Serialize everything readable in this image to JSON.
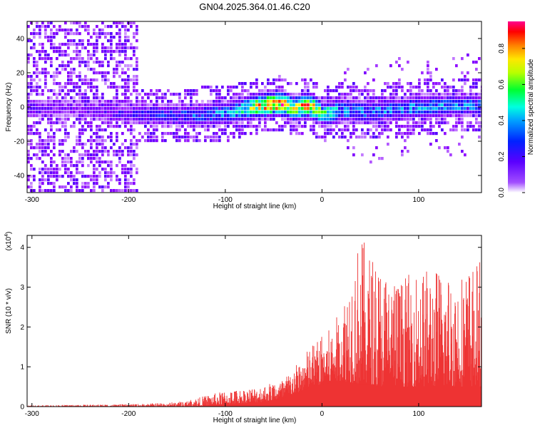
{
  "title": "GN04.2025.364.01.46.C20",
  "chart_data": [
    {
      "type": "heatmap",
      "xlabel": "Height of straight line (km)",
      "ylabel": "Frequency (Hz)",
      "xlim": [
        -305,
        165
      ],
      "ylim": [
        -50,
        50
      ],
      "xticks": [
        -300,
        -200,
        -100,
        0,
        100
      ],
      "yticks": [
        -40,
        -20,
        0,
        20,
        40
      ],
      "colorbar": {
        "label": "Normalized spectral amplitude",
        "range": [
          0,
          0.95
        ],
        "ticks": [
          0.0,
          0.2,
          0.4,
          0.6,
          0.8
        ],
        "colormap": [
          "#ffffff",
          "#8a00ff",
          "#2200ff",
          "#00b4ff",
          "#00ffd0",
          "#00ff00",
          "#ffff00",
          "#ff8000",
          "#ff0000",
          "#ff00aa"
        ]
      },
      "ridge": {
        "x": [
          -300,
          -250,
          -200,
          -150,
          -100,
          -80,
          -60,
          -45,
          -30,
          -15,
          0,
          20,
          50,
          100,
          165
        ],
        "center_hz": [
          0,
          0,
          -3,
          -4,
          -3,
          0,
          2,
          3,
          0,
          2,
          -3,
          -1,
          -2,
          1,
          2
        ],
        "peak_amplitude": [
          0.15,
          0.1,
          0.2,
          0.25,
          0.35,
          0.5,
          0.85,
          0.9,
          0.7,
          0.85,
          0.55,
          0.35,
          0.3,
          0.35,
          0.3
        ]
      }
    },
    {
      "type": "area",
      "xlabel": "Height of straight line (km)",
      "ylabel": "SNR (10 * v/v)",
      "scale_label": "(x10",
      "scale_exponent": "4",
      "xlim": [
        -305,
        165
      ],
      "ylim": [
        0,
        4.3
      ],
      "xticks": [
        -300,
        -200,
        -100,
        0,
        100
      ],
      "yticks": [
        0,
        1,
        2,
        3,
        4
      ],
      "color": "#ee3333",
      "envelope": {
        "x": [
          -305,
          -250,
          -200,
          -160,
          -140,
          -120,
          -100,
          -80,
          -60,
          -40,
          -25,
          -10,
          0,
          10,
          20,
          30,
          40,
          50,
          60,
          80,
          100,
          120,
          140,
          165
        ],
        "max": [
          0.03,
          0.05,
          0.06,
          0.1,
          0.15,
          0.28,
          0.4,
          0.45,
          0.55,
          0.7,
          1.1,
          1.6,
          1.8,
          2.0,
          2.5,
          3.6,
          4.3,
          3.9,
          3.6,
          3.2,
          3.5,
          3.5,
          3.4,
          3.7
        ],
        "base": [
          0.0,
          0.0,
          0.0,
          0.0,
          0.0,
          0.02,
          0.05,
          0.08,
          0.12,
          0.2,
          0.35,
          0.5,
          0.55,
          0.6,
          0.65,
          0.6,
          0.55,
          0.55,
          0.5,
          0.5,
          0.5,
          0.5,
          0.5,
          0.5
        ]
      }
    }
  ]
}
